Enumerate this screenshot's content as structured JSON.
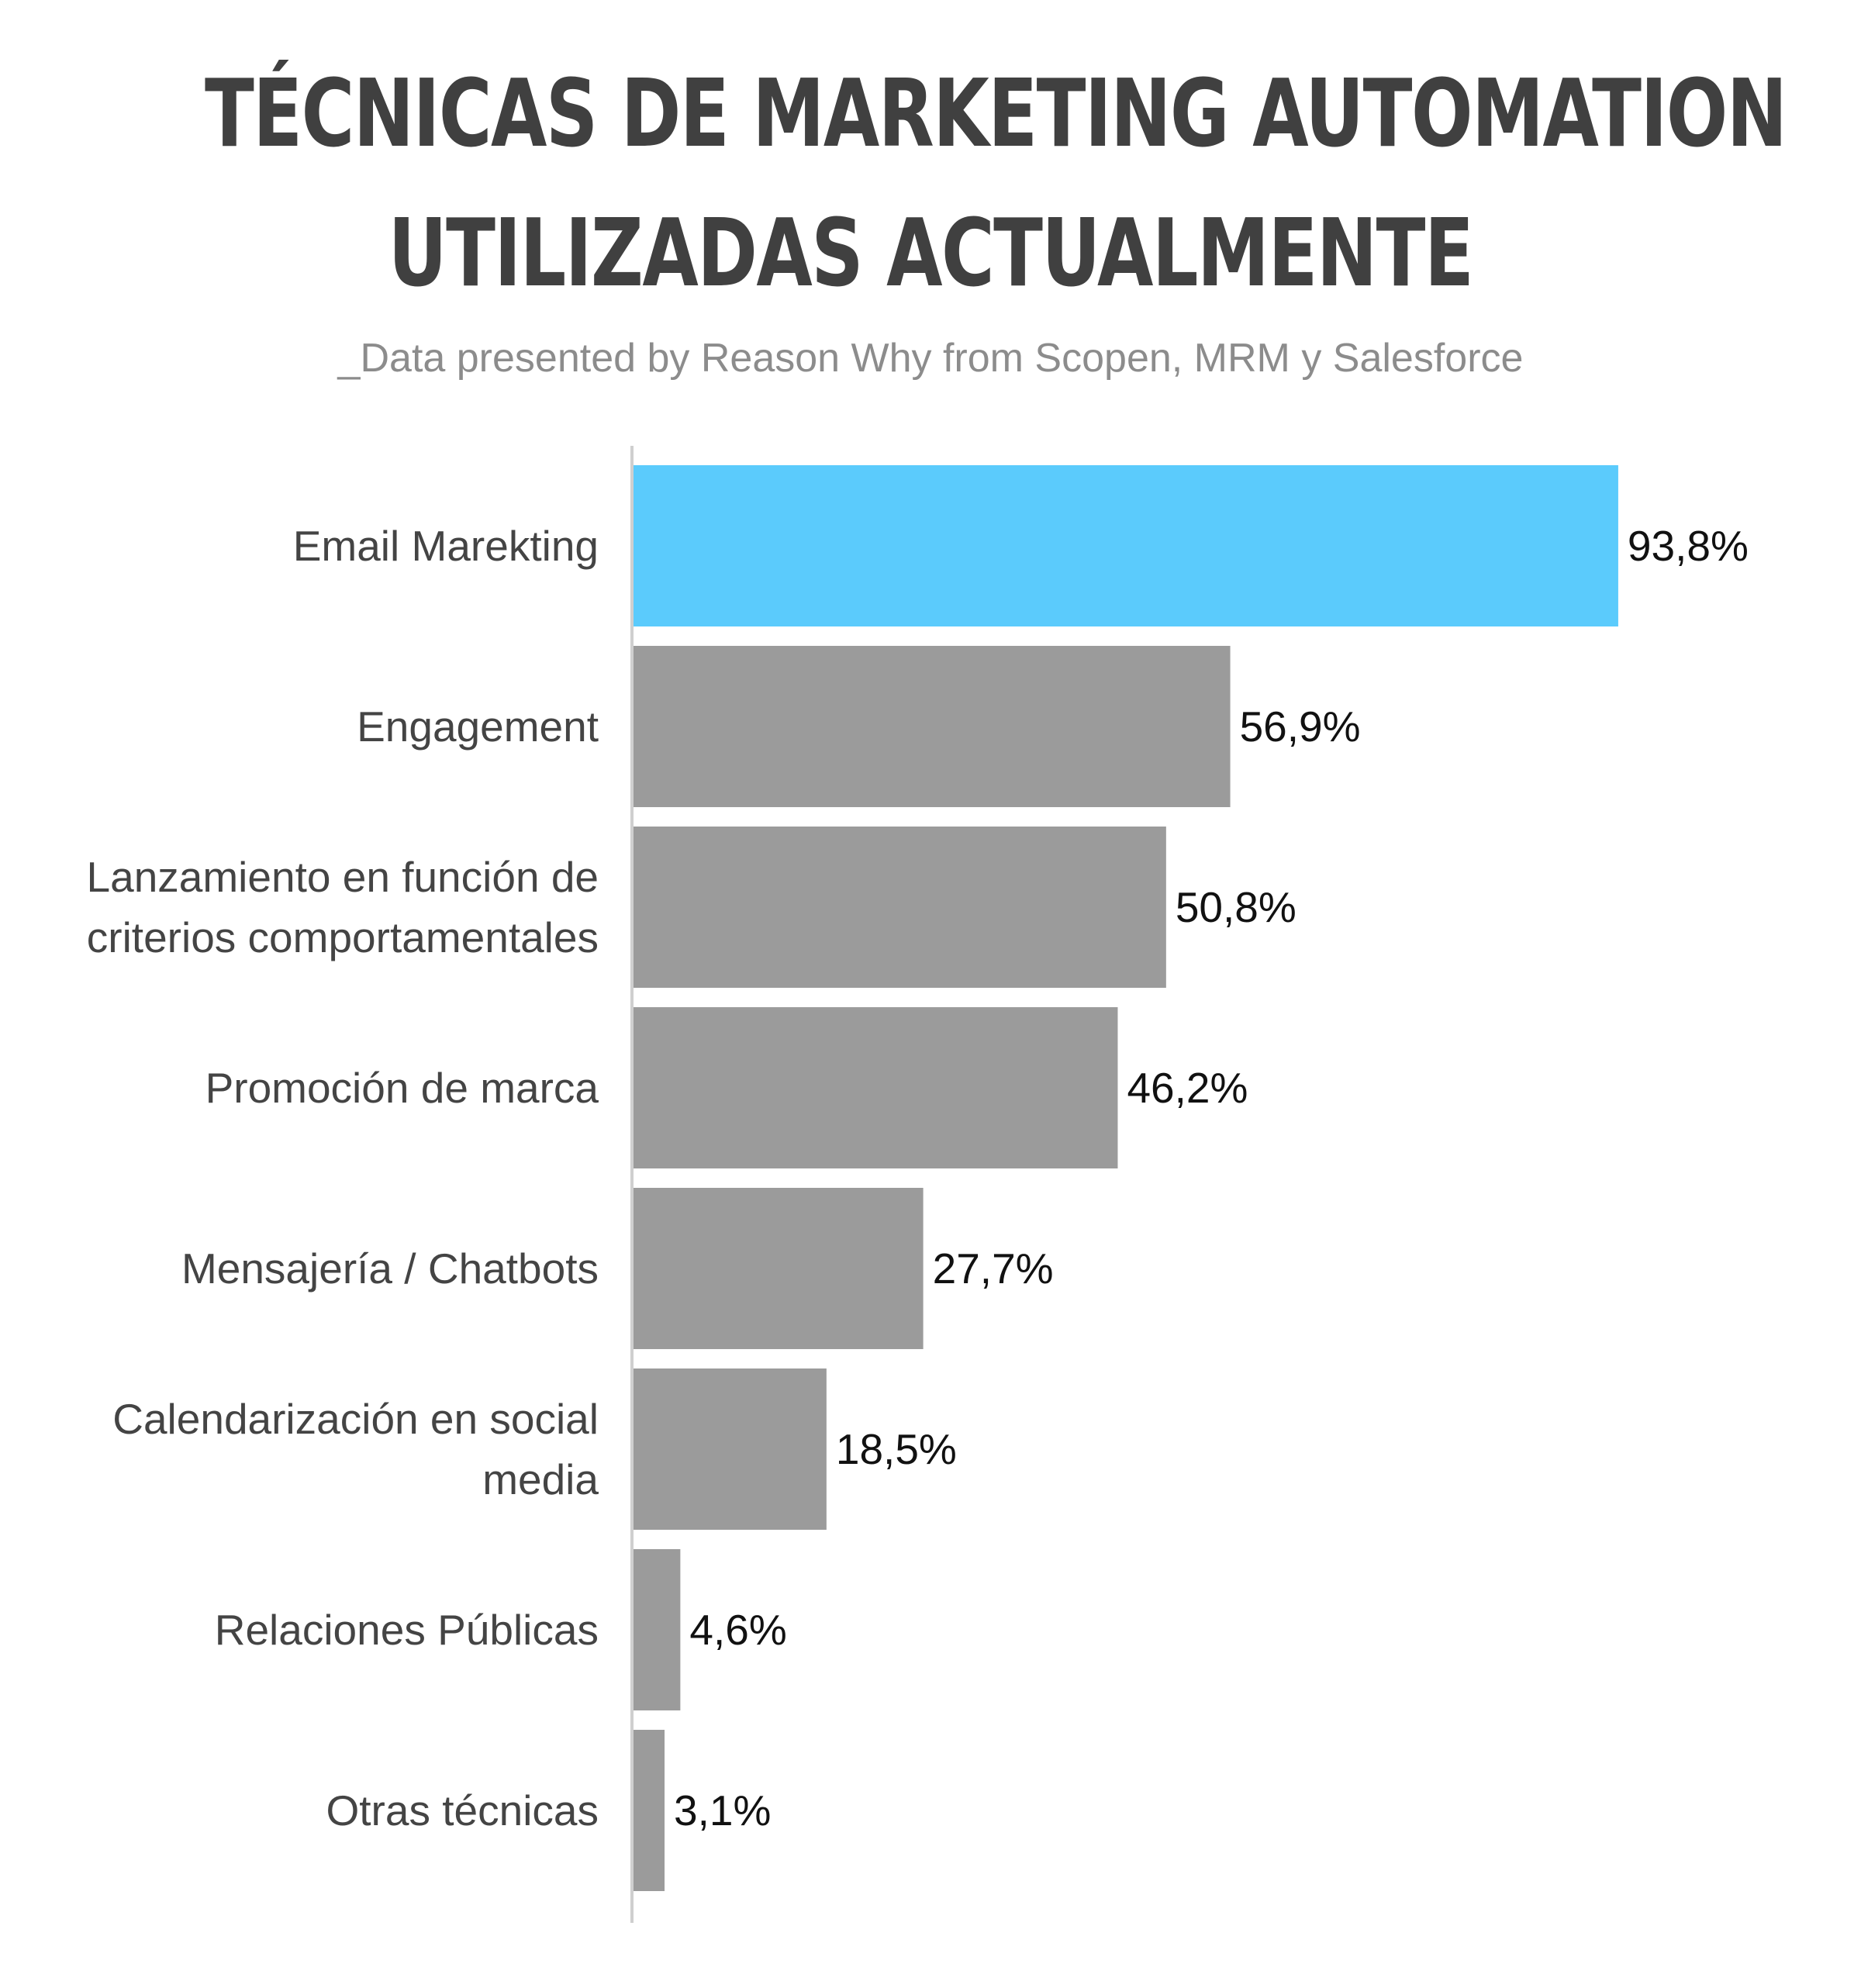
{
  "title_line_1": "TÉCNICAS DE MARKETING AUTOMATION",
  "title_line_2": "UTILIZADAS ACTUALMENTE",
  "subtitle": "_Data presented by Reason Why from Scopen, MRM y Salesforce",
  "colors": {
    "highlight": "#5bcbfc",
    "bar": "#9b9b9b",
    "axis": "#cfcfcf",
    "title": "#404040",
    "subtitle": "#8c8c8c"
  },
  "chart_data": {
    "type": "bar",
    "orientation": "horizontal",
    "categories": [
      "Email Marekting",
      "Engagement",
      "Lanzamiento en función de criterios comportamentales",
      "Promoción de marca",
      "Mensajería / Chatbots",
      "Calendarización en social media",
      "Relaciones Públicas",
      "Otras técnicas"
    ],
    "category_lines": [
      [
        "Email Marekting"
      ],
      [
        "Engagement"
      ],
      [
        "Lanzamiento en función de",
        "criterios comportamentales"
      ],
      [
        "Promoción de marca"
      ],
      [
        "Mensajería / Chatbots"
      ],
      [
        "Calendarización en social",
        "media"
      ],
      [
        "Relaciones Públicas"
      ],
      [
        "Otras técnicas"
      ]
    ],
    "values": [
      93.8,
      56.9,
      50.8,
      46.2,
      27.7,
      18.5,
      4.6,
      3.1
    ],
    "value_labels": [
      "93,8%",
      "56,9%",
      "50,8%",
      "46,2%",
      "27,7%",
      "18,5%",
      "4,6%",
      "3,1%"
    ],
    "highlighted_index": 0,
    "xlim": [
      0,
      100
    ],
    "grid": false,
    "legend": "none"
  }
}
